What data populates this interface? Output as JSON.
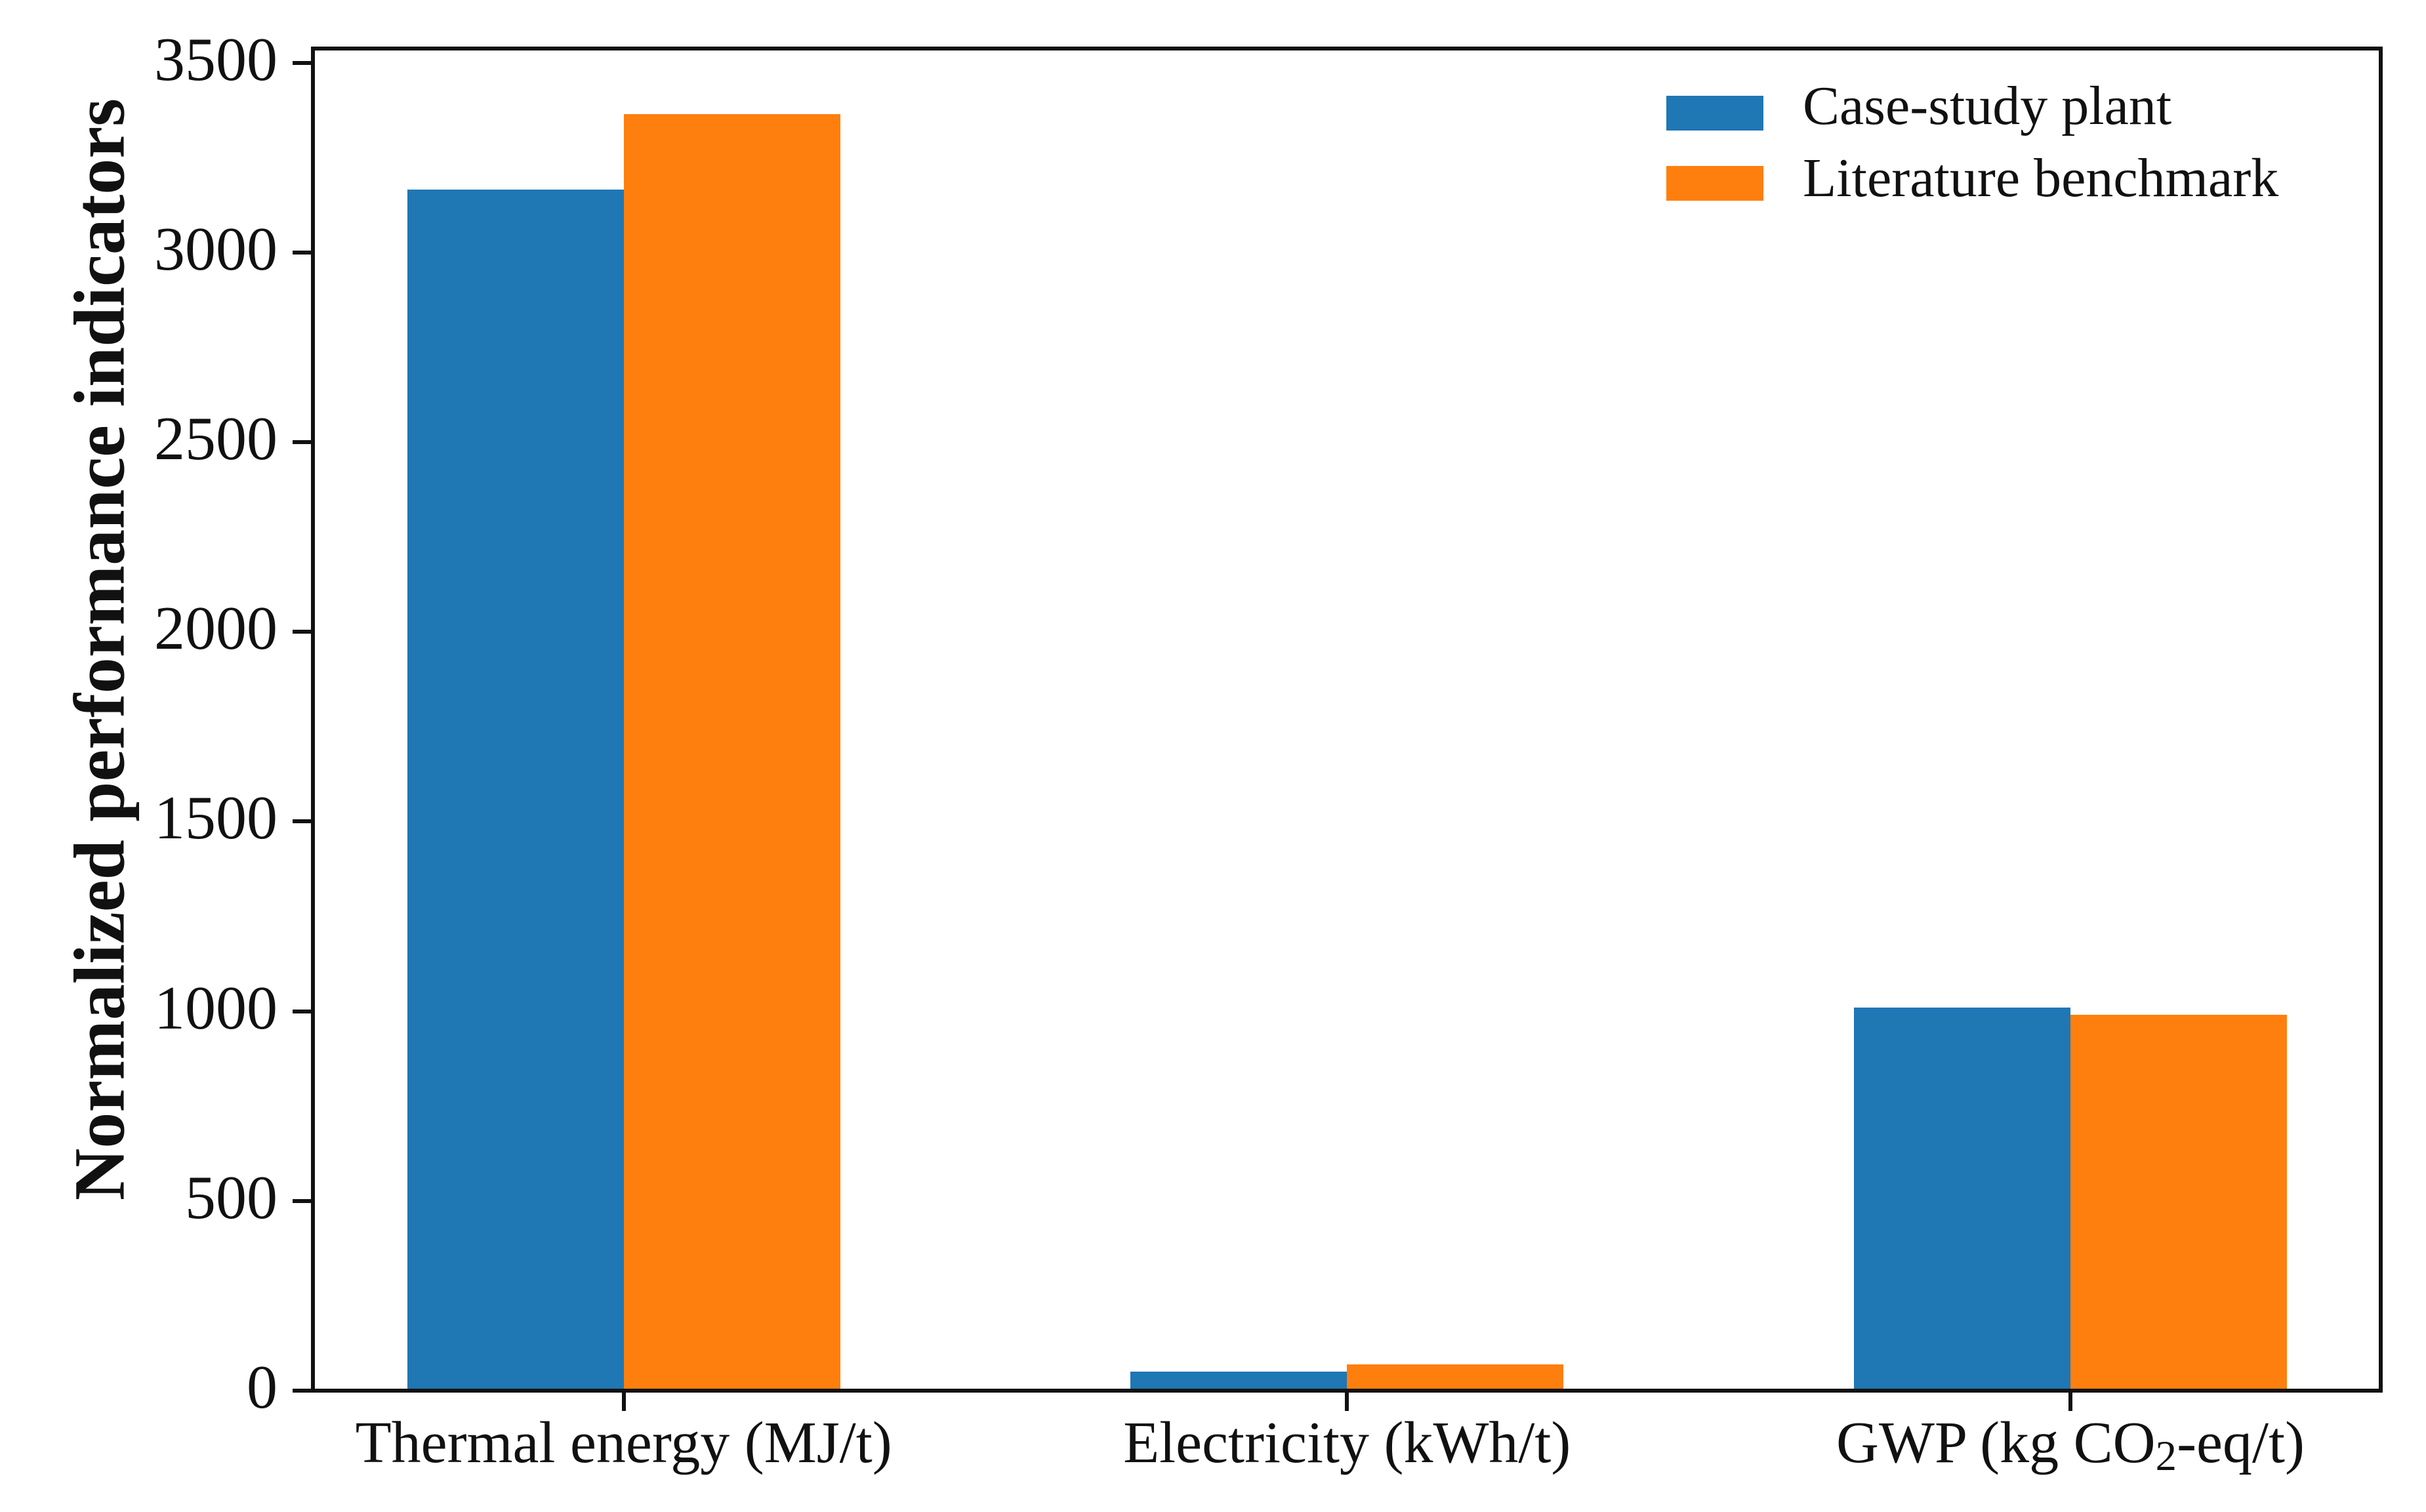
{
  "figure": {
    "background": "#ffffff",
    "axis_color": "#111111"
  },
  "chart_data": {
    "type": "bar",
    "title": "",
    "xlabel": "",
    "ylabel": "Normalized performance indicators",
    "categories": [
      "Thermal energy (MJ/t)",
      "Electricity (kWh/t)",
      "GWP (kg CO2-eq/t)"
    ],
    "series": [
      {
        "name": "Case-study plant",
        "color": "#1f77b4",
        "values": [
          3165,
          50,
          1010
        ]
      },
      {
        "name": "Literature benchmark",
        "color": "#ff7f0e",
        "values": [
          3365,
          70,
          990
        ]
      }
    ],
    "ylim": [
      0,
      3500
    ],
    "y_ticks": [
      0,
      500,
      1000,
      1500,
      2000,
      2500,
      3000,
      3500
    ],
    "grid": false,
    "legend_position": "upper left inside plot, no frame",
    "bars_per_group": 2
  }
}
